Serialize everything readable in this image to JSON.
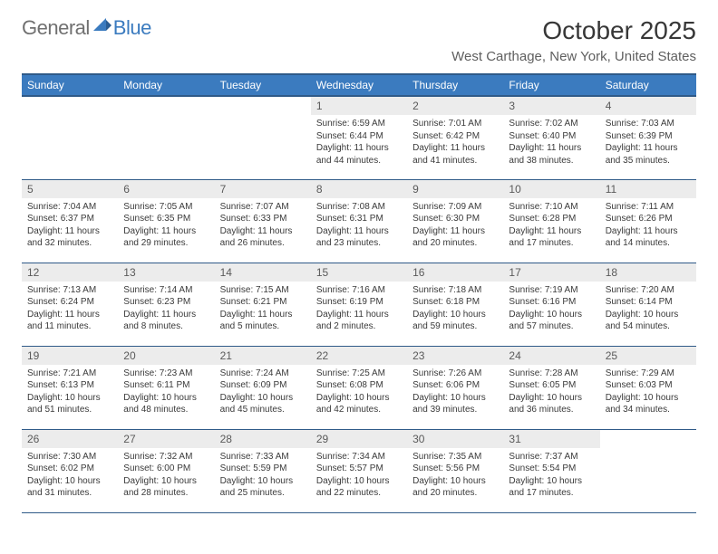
{
  "logo": {
    "general": "General",
    "blue": "Blue"
  },
  "title": "October 2025",
  "location": "West Carthage, New York, United States",
  "colors": {
    "header_bg": "#3b7bbf",
    "header_border": "#2f5a88",
    "daynum_bg": "#ececec",
    "text": "#3a3a3a",
    "title_text": "#373737",
    "location_text": "#5f5f5f"
  },
  "weekdays": [
    "Sunday",
    "Monday",
    "Tuesday",
    "Wednesday",
    "Thursday",
    "Friday",
    "Saturday"
  ],
  "weeks": [
    [
      null,
      null,
      null,
      {
        "day": "1",
        "sunrise": "6:59 AM",
        "sunset": "6:44 PM",
        "daylight": "11 hours and 44 minutes."
      },
      {
        "day": "2",
        "sunrise": "7:01 AM",
        "sunset": "6:42 PM",
        "daylight": "11 hours and 41 minutes."
      },
      {
        "day": "3",
        "sunrise": "7:02 AM",
        "sunset": "6:40 PM",
        "daylight": "11 hours and 38 minutes."
      },
      {
        "day": "4",
        "sunrise": "7:03 AM",
        "sunset": "6:39 PM",
        "daylight": "11 hours and 35 minutes."
      }
    ],
    [
      {
        "day": "5",
        "sunrise": "7:04 AM",
        "sunset": "6:37 PM",
        "daylight": "11 hours and 32 minutes."
      },
      {
        "day": "6",
        "sunrise": "7:05 AM",
        "sunset": "6:35 PM",
        "daylight": "11 hours and 29 minutes."
      },
      {
        "day": "7",
        "sunrise": "7:07 AM",
        "sunset": "6:33 PM",
        "daylight": "11 hours and 26 minutes."
      },
      {
        "day": "8",
        "sunrise": "7:08 AM",
        "sunset": "6:31 PM",
        "daylight": "11 hours and 23 minutes."
      },
      {
        "day": "9",
        "sunrise": "7:09 AM",
        "sunset": "6:30 PM",
        "daylight": "11 hours and 20 minutes."
      },
      {
        "day": "10",
        "sunrise": "7:10 AM",
        "sunset": "6:28 PM",
        "daylight": "11 hours and 17 minutes."
      },
      {
        "day": "11",
        "sunrise": "7:11 AM",
        "sunset": "6:26 PM",
        "daylight": "11 hours and 14 minutes."
      }
    ],
    [
      {
        "day": "12",
        "sunrise": "7:13 AM",
        "sunset": "6:24 PM",
        "daylight": "11 hours and 11 minutes."
      },
      {
        "day": "13",
        "sunrise": "7:14 AM",
        "sunset": "6:23 PM",
        "daylight": "11 hours and 8 minutes."
      },
      {
        "day": "14",
        "sunrise": "7:15 AM",
        "sunset": "6:21 PM",
        "daylight": "11 hours and 5 minutes."
      },
      {
        "day": "15",
        "sunrise": "7:16 AM",
        "sunset": "6:19 PM",
        "daylight": "11 hours and 2 minutes."
      },
      {
        "day": "16",
        "sunrise": "7:18 AM",
        "sunset": "6:18 PM",
        "daylight": "10 hours and 59 minutes."
      },
      {
        "day": "17",
        "sunrise": "7:19 AM",
        "sunset": "6:16 PM",
        "daylight": "10 hours and 57 minutes."
      },
      {
        "day": "18",
        "sunrise": "7:20 AM",
        "sunset": "6:14 PM",
        "daylight": "10 hours and 54 minutes."
      }
    ],
    [
      {
        "day": "19",
        "sunrise": "7:21 AM",
        "sunset": "6:13 PM",
        "daylight": "10 hours and 51 minutes."
      },
      {
        "day": "20",
        "sunrise": "7:23 AM",
        "sunset": "6:11 PM",
        "daylight": "10 hours and 48 minutes."
      },
      {
        "day": "21",
        "sunrise": "7:24 AM",
        "sunset": "6:09 PM",
        "daylight": "10 hours and 45 minutes."
      },
      {
        "day": "22",
        "sunrise": "7:25 AM",
        "sunset": "6:08 PM",
        "daylight": "10 hours and 42 minutes."
      },
      {
        "day": "23",
        "sunrise": "7:26 AM",
        "sunset": "6:06 PM",
        "daylight": "10 hours and 39 minutes."
      },
      {
        "day": "24",
        "sunrise": "7:28 AM",
        "sunset": "6:05 PM",
        "daylight": "10 hours and 36 minutes."
      },
      {
        "day": "25",
        "sunrise": "7:29 AM",
        "sunset": "6:03 PM",
        "daylight": "10 hours and 34 minutes."
      }
    ],
    [
      {
        "day": "26",
        "sunrise": "7:30 AM",
        "sunset": "6:02 PM",
        "daylight": "10 hours and 31 minutes."
      },
      {
        "day": "27",
        "sunrise": "7:32 AM",
        "sunset": "6:00 PM",
        "daylight": "10 hours and 28 minutes."
      },
      {
        "day": "28",
        "sunrise": "7:33 AM",
        "sunset": "5:59 PM",
        "daylight": "10 hours and 25 minutes."
      },
      {
        "day": "29",
        "sunrise": "7:34 AM",
        "sunset": "5:57 PM",
        "daylight": "10 hours and 22 minutes."
      },
      {
        "day": "30",
        "sunrise": "7:35 AM",
        "sunset": "5:56 PM",
        "daylight": "10 hours and 20 minutes."
      },
      {
        "day": "31",
        "sunrise": "7:37 AM",
        "sunset": "5:54 PM",
        "daylight": "10 hours and 17 minutes."
      },
      null
    ]
  ],
  "labels": {
    "sunrise": "Sunrise:",
    "sunset": "Sunset:",
    "daylight": "Daylight:"
  }
}
